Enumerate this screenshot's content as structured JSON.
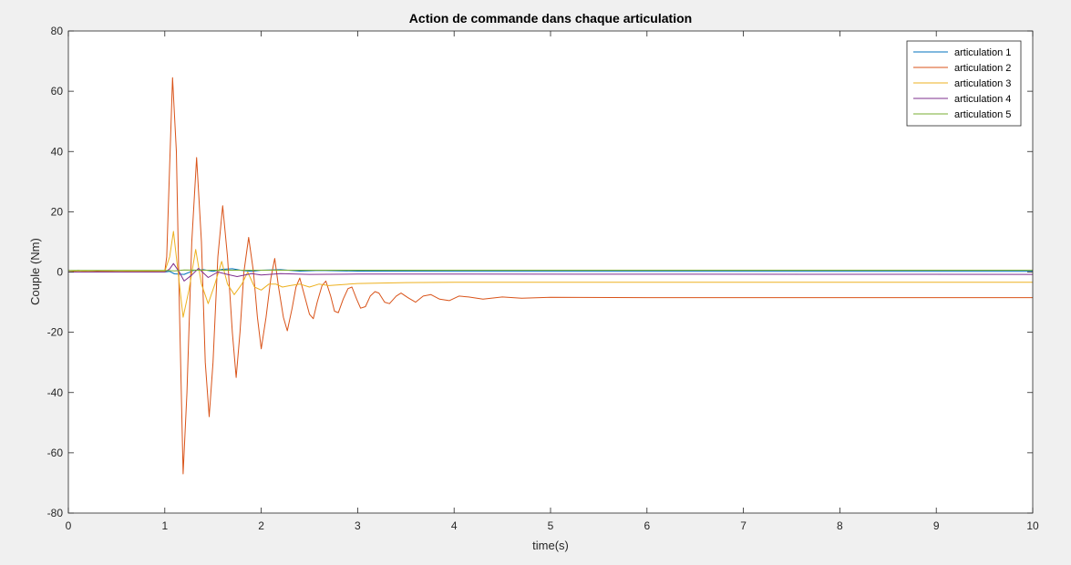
{
  "chart_data": {
    "type": "line",
    "title": "Action de commande dans chaque articulation",
    "xlabel": "time(s)",
    "ylabel": "Couple (Nm)",
    "xlim": [
      0,
      10
    ],
    "ylim": [
      -80,
      80
    ],
    "xticks": [
      0,
      1,
      2,
      3,
      4,
      5,
      6,
      7,
      8,
      9,
      10
    ],
    "yticks": [
      -80,
      -60,
      -40,
      -20,
      0,
      20,
      40,
      60,
      80
    ],
    "grid": false,
    "legend_position": "top-right",
    "series": [
      {
        "name": "articulation 1",
        "color": "#0072BD",
        "points": [
          [
            0,
            0
          ],
          [
            1.0,
            0
          ],
          [
            1.05,
            0.2
          ],
          [
            1.1,
            -0.6
          ],
          [
            1.2,
            -0.8
          ],
          [
            1.3,
            0.5
          ],
          [
            1.4,
            0.8
          ],
          [
            1.5,
            0.2
          ],
          [
            1.6,
            0.9
          ],
          [
            1.7,
            1.1
          ],
          [
            1.8,
            0.5
          ],
          [
            1.9,
            0.2
          ],
          [
            2.0,
            0.6
          ],
          [
            2.2,
            0.8
          ],
          [
            2.4,
            0.3
          ],
          [
            2.6,
            0.5
          ],
          [
            3.0,
            0.3
          ],
          [
            4.0,
            0.2
          ],
          [
            10,
            0.2
          ]
        ]
      },
      {
        "name": "articulation 2",
        "color": "#D95319",
        "points": [
          [
            0,
            0
          ],
          [
            0.1,
            0.5
          ],
          [
            0.2,
            0.2
          ],
          [
            0.4,
            0.4
          ],
          [
            0.6,
            0.1
          ],
          [
            0.8,
            0.3
          ],
          [
            1.0,
            0.2
          ],
          [
            1.02,
            5
          ],
          [
            1.05,
            35
          ],
          [
            1.08,
            64.5
          ],
          [
            1.12,
            40
          ],
          [
            1.15,
            -10
          ],
          [
            1.19,
            -67
          ],
          [
            1.23,
            -40
          ],
          [
            1.28,
            10
          ],
          [
            1.33,
            38
          ],
          [
            1.38,
            10
          ],
          [
            1.42,
            -30
          ],
          [
            1.46,
            -48
          ],
          [
            1.5,
            -30
          ],
          [
            1.55,
            5
          ],
          [
            1.6,
            22
          ],
          [
            1.65,
            5
          ],
          [
            1.7,
            -20
          ],
          [
            1.74,
            -35
          ],
          [
            1.78,
            -20
          ],
          [
            1.82,
            0
          ],
          [
            1.87,
            11.5
          ],
          [
            1.92,
            0
          ],
          [
            1.96,
            -15
          ],
          [
            2.0,
            -25.5
          ],
          [
            2.05,
            -15
          ],
          [
            2.1,
            -2
          ],
          [
            2.14,
            4.5
          ],
          [
            2.18,
            -5
          ],
          [
            2.23,
            -15
          ],
          [
            2.27,
            -19.5
          ],
          [
            2.32,
            -12
          ],
          [
            2.36,
            -5
          ],
          [
            2.4,
            -2
          ],
          [
            2.45,
            -8
          ],
          [
            2.5,
            -14
          ],
          [
            2.54,
            -15.5
          ],
          [
            2.58,
            -10
          ],
          [
            2.63,
            -4.5
          ],
          [
            2.67,
            -3
          ],
          [
            2.72,
            -8
          ],
          [
            2.76,
            -13
          ],
          [
            2.8,
            -13.5
          ],
          [
            2.85,
            -9
          ],
          [
            2.9,
            -5.5
          ],
          [
            2.94,
            -5
          ],
          [
            2.99,
            -9
          ],
          [
            3.03,
            -12
          ],
          [
            3.08,
            -11.5
          ],
          [
            3.13,
            -8
          ],
          [
            3.18,
            -6.5
          ],
          [
            3.22,
            -7
          ],
          [
            3.28,
            -10
          ],
          [
            3.33,
            -10.5
          ],
          [
            3.4,
            -8
          ],
          [
            3.45,
            -7
          ],
          [
            3.52,
            -8.5
          ],
          [
            3.6,
            -10
          ],
          [
            3.68,
            -8
          ],
          [
            3.76,
            -7.5
          ],
          [
            3.85,
            -9
          ],
          [
            3.95,
            -9.5
          ],
          [
            4.05,
            -8
          ],
          [
            4.15,
            -8.3
          ],
          [
            4.3,
            -9
          ],
          [
            4.5,
            -8.3
          ],
          [
            4.7,
            -8.7
          ],
          [
            5.0,
            -8.4
          ],
          [
            6.0,
            -8.5
          ],
          [
            10,
            -8.5
          ]
        ]
      },
      {
        "name": "articulation 3",
        "color": "#EDB120",
        "points": [
          [
            0,
            0
          ],
          [
            0.1,
            0.4
          ],
          [
            0.3,
            0.1
          ],
          [
            0.6,
            0.3
          ],
          [
            1.0,
            0.2
          ],
          [
            1.05,
            5
          ],
          [
            1.09,
            13.5
          ],
          [
            1.13,
            2
          ],
          [
            1.19,
            -15
          ],
          [
            1.25,
            -6
          ],
          [
            1.32,
            7.5
          ],
          [
            1.38,
            -4
          ],
          [
            1.45,
            -10.5
          ],
          [
            1.52,
            -4
          ],
          [
            1.59,
            3.5
          ],
          [
            1.65,
            -4
          ],
          [
            1.72,
            -7.5
          ],
          [
            1.8,
            -4
          ],
          [
            1.86,
            0
          ],
          [
            1.93,
            -5
          ],
          [
            2.0,
            -6
          ],
          [
            2.08,
            -4
          ],
          [
            2.15,
            -4
          ],
          [
            2.22,
            -5
          ],
          [
            2.3,
            -4.5
          ],
          [
            2.4,
            -4
          ],
          [
            2.5,
            -5
          ],
          [
            2.6,
            -4
          ],
          [
            2.7,
            -4.5
          ],
          [
            3.0,
            -3.8
          ],
          [
            3.5,
            -3.5
          ],
          [
            4.0,
            -3.4
          ],
          [
            10,
            -3.4
          ]
        ]
      },
      {
        "name": "articulation 4",
        "color": "#7E2F8E",
        "points": [
          [
            0,
            0
          ],
          [
            1.0,
            0
          ],
          [
            1.05,
            1
          ],
          [
            1.09,
            2.8
          ],
          [
            1.15,
            0
          ],
          [
            1.2,
            -3
          ],
          [
            1.28,
            -1
          ],
          [
            1.35,
            1.2
          ],
          [
            1.45,
            -1.8
          ],
          [
            1.55,
            0
          ],
          [
            1.65,
            -0.8
          ],
          [
            1.75,
            -1.5
          ],
          [
            1.9,
            -0.5
          ],
          [
            2.0,
            -1
          ],
          [
            2.2,
            -0.5
          ],
          [
            2.5,
            -0.8
          ],
          [
            3.0,
            -0.7
          ],
          [
            4.0,
            -0.7
          ],
          [
            10,
            -0.8
          ]
        ]
      },
      {
        "name": "articulation 5",
        "color": "#77AC30",
        "points": [
          [
            0,
            0.5
          ],
          [
            0.2,
            0.5
          ],
          [
            1.0,
            0.5
          ],
          [
            1.1,
            0.4
          ],
          [
            1.2,
            0.7
          ],
          [
            1.4,
            0.6
          ],
          [
            2.0,
            0.6
          ],
          [
            4.0,
            0.6
          ],
          [
            10,
            0.6
          ]
        ]
      }
    ]
  }
}
